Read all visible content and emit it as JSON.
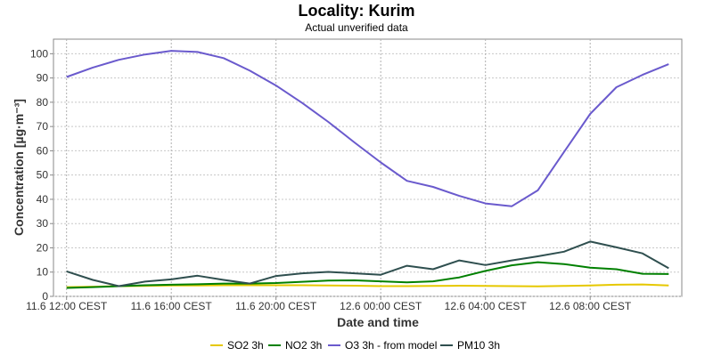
{
  "chart_data": {
    "type": "line",
    "title": "Locality: Kurim",
    "subtitle": "Actual unverified data",
    "xlabel": "Date and time",
    "ylabel": "Concentration [µg·m⁻³]",
    "ylim": [
      0,
      106
    ],
    "yticks": [
      0,
      10,
      20,
      30,
      40,
      50,
      60,
      70,
      80,
      90,
      100
    ],
    "xlim": [
      11.5,
      35.5
    ],
    "xticks": [
      {
        "value": 12,
        "label": "11.6 12:00 CEST"
      },
      {
        "value": 16,
        "label": "11.6 16:00 CEST"
      },
      {
        "value": 20,
        "label": "11.6 20:00 CEST"
      },
      {
        "value": 24,
        "label": "12.6 00:00 CEST"
      },
      {
        "value": 28,
        "label": "12.6 04:00 CEST"
      },
      {
        "value": 32,
        "label": "12.6 08:00 CEST"
      }
    ],
    "grid": true,
    "legend_position": "bottom",
    "x": [
      12,
      13,
      14,
      15,
      16,
      17,
      18,
      19,
      20,
      21,
      22,
      23,
      24,
      25,
      26,
      27,
      28,
      29,
      30,
      31,
      32,
      33,
      34,
      35
    ],
    "series": [
      {
        "name": "SO2 3h",
        "color": "#e6c800",
        "values": [
          3.8,
          4.0,
          4.2,
          4.3,
          4.5,
          4.5,
          4.6,
          4.6,
          4.6,
          4.6,
          4.5,
          4.4,
          4.2,
          4.2,
          4.3,
          4.4,
          4.3,
          4.2,
          4.1,
          4.3,
          4.5,
          4.8,
          4.9,
          4.5
        ]
      },
      {
        "name": "NO2 3h",
        "color": "#008000",
        "values": [
          3.5,
          3.8,
          4.2,
          4.6,
          4.8,
          5.0,
          5.3,
          5.3,
          5.5,
          6.0,
          6.5,
          6.6,
          6.2,
          5.8,
          6.2,
          7.8,
          10.5,
          12.8,
          14.1,
          13.3,
          11.8,
          11.2,
          9.3,
          9.2
        ]
      },
      {
        "name": "O3 3h - from model",
        "color": "#6a5acd",
        "values": [
          90.4,
          94.3,
          97.5,
          99.7,
          101.2,
          100.7,
          98.2,
          93.0,
          86.9,
          79.7,
          71.9,
          63.4,
          55.2,
          47.6,
          45.1,
          41.4,
          38.3,
          37.1,
          43.7,
          59.5,
          75.2,
          86.2,
          91.3,
          95.7
        ]
      },
      {
        "name": "PM10 3h",
        "color": "#2f4f4f",
        "values": [
          10.3,
          6.8,
          4.2,
          6.1,
          7.0,
          8.5,
          6.8,
          5.3,
          8.4,
          9.5,
          10.1,
          9.5,
          8.9,
          12.6,
          11.2,
          14.8,
          12.9,
          14.8,
          16.5,
          18.4,
          22.6,
          20.2,
          17.7,
          11.6
        ]
      }
    ]
  }
}
